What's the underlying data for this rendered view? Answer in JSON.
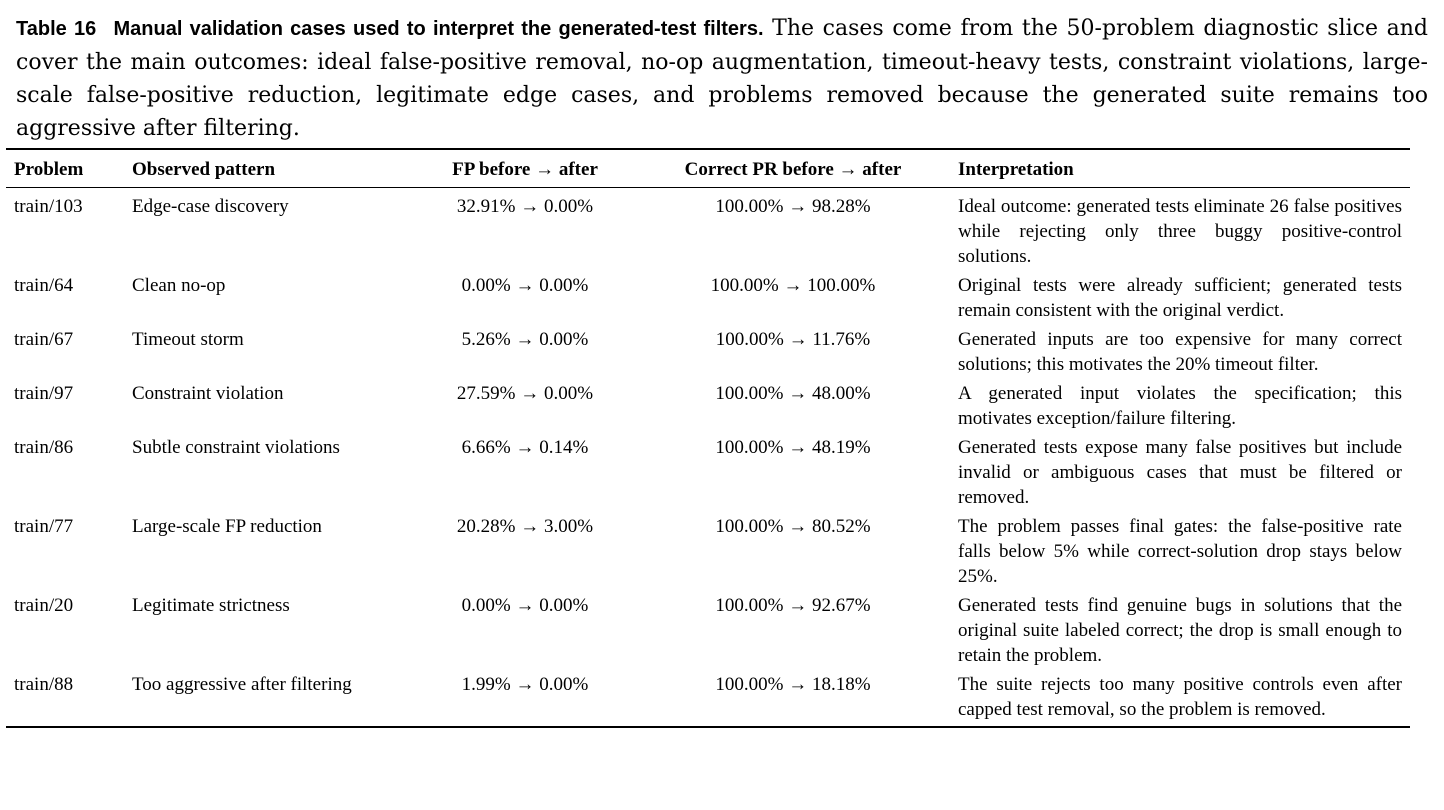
{
  "caption": {
    "label": "Table 16",
    "title": "Manual validation cases used to interpret the generated-test filters.",
    "body": "The cases come from the 50-problem diagnostic slice and cover the main outcomes: ideal false-positive removal, no-op augmentation, timeout-heavy tests, constraint violations, large-scale false-positive reduction, legitimate edge cases, and problems removed because the generated suite remains too aggressive after filtering."
  },
  "table": {
    "headers": {
      "problem": "Problem",
      "pattern": "Observed pattern",
      "fp": "FP before → after",
      "pr": "Correct PR before → after",
      "interp": "Interpretation"
    },
    "rows": [
      {
        "problem": "train/103",
        "pattern": "Edge-case discovery",
        "fp": "32.91% → 0.00%",
        "pr": "100.00% → 98.28%",
        "interp": "Ideal outcome: generated tests eliminate 26 false positives while rejecting only three buggy positive-control solutions."
      },
      {
        "problem": "train/64",
        "pattern": "Clean no-op",
        "fp": "0.00% → 0.00%",
        "pr": "100.00% → 100.00%",
        "interp": "Original tests were already sufficient; generated tests remain consistent with the original verdict."
      },
      {
        "problem": "train/67",
        "pattern": "Timeout storm",
        "fp": "5.26% → 0.00%",
        "pr": "100.00% → 11.76%",
        "interp": "Generated inputs are too expensive for many correct solutions; this motivates the 20% timeout filter."
      },
      {
        "problem": "train/97",
        "pattern": "Constraint violation",
        "fp": "27.59% → 0.00%",
        "pr": "100.00% → 48.00%",
        "interp": "A generated input violates the specification; this motivates exception/failure filtering."
      },
      {
        "problem": "train/86",
        "pattern": "Subtle constraint violations",
        "fp": "6.66% → 0.14%",
        "pr": "100.00% → 48.19%",
        "interp": "Generated tests expose many false positives but include invalid or ambiguous cases that must be filtered or removed."
      },
      {
        "problem": "train/77",
        "pattern": "Large-scale FP reduction",
        "fp": "20.28% → 3.00%",
        "pr": "100.00% → 80.52%",
        "interp": "The problem passes final gates: the false-positive rate falls below 5% while correct-solution drop stays below 25%."
      },
      {
        "problem": "train/20",
        "pattern": "Legitimate strictness",
        "fp": "0.00% → 0.00%",
        "pr": "100.00% → 92.67%",
        "interp": "Generated tests find genuine bugs in solutions that the original suite labeled correct; the drop is small enough to retain the problem."
      },
      {
        "problem": "train/88",
        "pattern": "Too aggressive after filtering",
        "fp": "1.99% → 0.00%",
        "pr": "100.00% → 18.18%",
        "interp": "The suite rejects too many positive controls even after capped test removal, so the problem is removed."
      }
    ]
  }
}
